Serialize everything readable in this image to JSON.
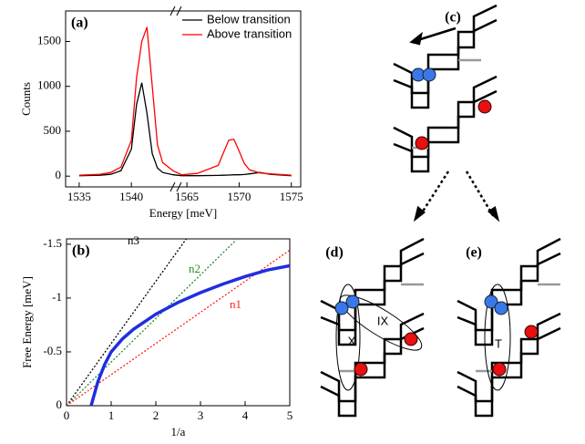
{
  "chart_data": [
    {
      "type": "line",
      "panel": "(a)",
      "x_label": "Energy [meV]",
      "y_label": "Counts",
      "x": [
        1535,
        1537,
        1538,
        1539,
        1540,
        1540.5,
        1541,
        1541.5,
        1542,
        1542.5,
        1543,
        1544,
        1564.5,
        1566,
        1568,
        1568.5,
        1569,
        1569.5,
        1570,
        1570.5,
        1571,
        1572,
        1573,
        1575
      ],
      "xsegments": [
        [
          1533.7,
          1544
        ],
        [
          1564.2,
          1575.9
        ]
      ],
      "xticks": [
        1535,
        1540,
        1565,
        1570,
        1575
      ],
      "ylim": [
        -120,
        1840
      ],
      "yticks": [
        0,
        500,
        1000,
        1500
      ],
      "legend": "upper right",
      "series": [
        {
          "name": "Below transition",
          "color": "#000000",
          "values": [
            5,
            10,
            20,
            60,
            300,
            800,
            1040,
            700,
            250,
            90,
            40,
            15,
            5,
            5,
            8,
            10,
            12,
            15,
            15,
            18,
            25,
            40,
            20,
            5
          ]
        },
        {
          "name": "Above transition",
          "color": "#ff0000",
          "values": [
            10,
            20,
            40,
            100,
            400,
            1100,
            1500,
            1660,
            1000,
            350,
            150,
            60,
            15,
            30,
            120,
            260,
            400,
            410,
            280,
            140,
            70,
            35,
            25,
            10
          ]
        }
      ]
    },
    {
      "type": "line",
      "panel": "(b)",
      "x_label": "1/a",
      "y_label": "Free Energy [meV]",
      "xlim": [
        0,
        5
      ],
      "xticks": [
        0,
        1,
        2,
        3,
        4,
        5
      ],
      "ylim": [
        0,
        -1.55
      ],
      "yticks": [
        0,
        -0.5,
        -1,
        -1.5
      ],
      "series": [
        {
          "name": "n3",
          "color": "#000000",
          "dashed": true,
          "x": [
            0,
            2.7
          ],
          "values": [
            0,
            -1.56
          ]
        },
        {
          "name": "n2",
          "color": "#2a8a2a",
          "dashed": true,
          "x": [
            0,
            3.8
          ],
          "values": [
            0,
            -1.54
          ]
        },
        {
          "name": "n1",
          "color": "#ff2020",
          "dashed": true,
          "x": [
            0,
            5
          ],
          "values": [
            0,
            -1.445
          ]
        },
        {
          "color": "#1f2ee0",
          "x": [
            0.55,
            0.7,
            0.85,
            1,
            1.25,
            1.5,
            2,
            2.5,
            3,
            3.5,
            4,
            4.5,
            5
          ],
          "values": [
            0,
            -0.22,
            -0.38,
            -0.5,
            -0.62,
            -0.71,
            -0.85,
            -0.96,
            -1.05,
            -1.13,
            -1.2,
            -1.26,
            -1.3
          ]
        }
      ]
    }
  ],
  "diagrams": {
    "panels": [
      {
        "label": "(c)"
      },
      {
        "label": "(d)",
        "annotations": [
          "X",
          "IX"
        ]
      },
      {
        "label": "(e)",
        "annotations": [
          "T"
        ]
      }
    ]
  }
}
